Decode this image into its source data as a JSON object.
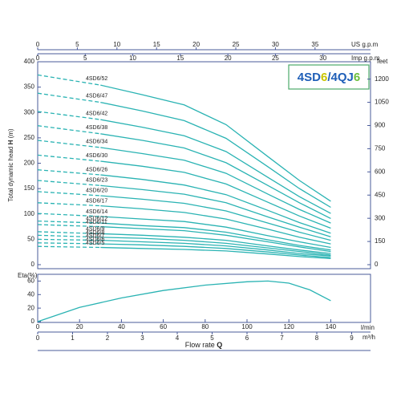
{
  "logo": [
    {
      "text": "4SD",
      "color": "#1f5fb8"
    },
    {
      "text": "6",
      "color": "#c9c400"
    },
    {
      "text": "/4QJ",
      "color": "#1f5fb8"
    },
    {
      "text": "6",
      "color": "#6cbf3c"
    }
  ],
  "chart_data": [
    {
      "type": "line",
      "ylabel": "Total dynamic head",
      "ylabel_symbol": "H",
      "ylabel_unit": "(m)",
      "x": [
        0,
        15,
        30,
        50,
        70,
        90,
        110,
        125,
        140
      ],
      "xlim": [
        0,
        159
      ],
      "dashed_until_x": 30,
      "ylim": [
        0,
        400
      ],
      "yticks": [
        0,
        50,
        100,
        150,
        200,
        250,
        300,
        350,
        400
      ],
      "y2label": "feet",
      "y2lim": [
        0,
        1312.3
      ],
      "y2ticks": [
        0,
        150,
        300,
        450,
        600,
        750,
        900,
        1050,
        1200
      ],
      "color": "#2ab3b3",
      "top_axes": [
        {
          "label": "US g.p.m",
          "lim": [
            0,
            42
          ],
          "ticks": [
            0,
            5,
            10,
            15,
            20,
            25,
            30,
            35
          ]
        },
        {
          "label": "Imp g.p.m",
          "lim": [
            0,
            35
          ],
          "ticks": [
            0,
            5,
            10,
            15,
            20,
            25,
            30
          ]
        }
      ],
      "series": [
        {
          "name": "4SD6/52",
          "values": [
            374,
            364,
            354,
            335,
            315,
            276,
            213,
            166,
            125
          ]
        },
        {
          "name": "4SD6/47",
          "values": [
            338,
            329,
            320,
            303,
            284,
            249,
            193,
            150,
            113
          ]
        },
        {
          "name": "4SD6/42",
          "values": [
            302,
            294,
            286,
            271,
            254,
            223,
            172,
            134,
            101
          ]
        },
        {
          "name": "4SD6/38",
          "values": [
            274,
            266,
            258,
            245,
            230,
            201,
            156,
            122,
            91
          ]
        },
        {
          "name": "4SD6/34",
          "values": [
            245,
            238,
            231,
            219,
            206,
            180,
            139,
            109,
            82
          ]
        },
        {
          "name": "4SD6/30",
          "values": [
            216,
            210,
            204,
            194,
            182,
            159,
            123,
            96,
            72
          ]
        },
        {
          "name": "4SD6/26",
          "values": [
            187,
            182,
            177,
            168,
            157,
            138,
            107,
            83,
            62
          ]
        },
        {
          "name": "4SD6/23",
          "values": [
            166,
            161,
            156,
            148,
            139,
            122,
            94,
            74,
            55
          ]
        },
        {
          "name": "4SD6/20",
          "values": [
            144,
            140,
            136,
            129,
            121,
            106,
            82,
            64,
            48
          ]
        },
        {
          "name": "4SD6/17",
          "values": [
            122,
            119,
            116,
            110,
            103,
            90,
            70,
            54,
            41
          ]
        },
        {
          "name": "4SD6/14",
          "values": [
            101,
            98,
            95,
            90,
            85,
            74,
            57,
            45,
            34
          ]
        },
        {
          "name": "4SD6/12",
          "values": [
            86,
            84,
            82,
            77,
            73,
            64,
            49,
            38,
            29
          ]
        },
        {
          "name": "4SD6/11",
          "values": [
            79,
            77,
            75,
            71,
            67,
            58,
            45,
            35,
            26
          ]
        },
        {
          "name": "4SD6/9",
          "values": [
            65,
            63,
            61,
            58,
            54,
            48,
            37,
            29,
            22
          ]
        },
        {
          "name": "4SD6/8",
          "values": [
            58,
            56,
            54,
            52,
            48,
            42,
            33,
            26,
            19
          ]
        },
        {
          "name": "4SD6/7",
          "values": [
            50,
            49,
            48,
            45,
            42,
            37,
            29,
            22,
            17
          ]
        },
        {
          "name": "4SD6/6",
          "values": [
            43,
            42,
            41,
            39,
            36,
            32,
            25,
            19,
            14
          ]
        },
        {
          "name": "4SD6/5",
          "values": [
            36,
            35,
            34,
            32,
            30,
            27,
            21,
            16,
            12
          ]
        }
      ]
    },
    {
      "type": "line",
      "ylabel": "Eta(%)",
      "x": [
        0,
        20,
        40,
        60,
        80,
        100,
        110,
        120,
        130,
        140
      ],
      "values": [
        0,
        21,
        35,
        46,
        54,
        59,
        60,
        57,
        47,
        31
      ],
      "color": "#2ab3b3",
      "xlim": [
        0,
        159
      ],
      "ylim": [
        0,
        70
      ],
      "yticks": [
        0,
        20,
        40,
        60
      ],
      "xticks": [
        0,
        20,
        40,
        60,
        80,
        100,
        120,
        140
      ],
      "xlabel": "l/min",
      "x2label": "m³/h",
      "x2lim": [
        0,
        9.54
      ],
      "x2ticks": [
        0,
        1,
        2,
        3,
        4,
        5,
        6,
        7,
        8,
        9
      ],
      "flow_label": "Flow rate",
      "flow_symbol": "Q"
    }
  ]
}
